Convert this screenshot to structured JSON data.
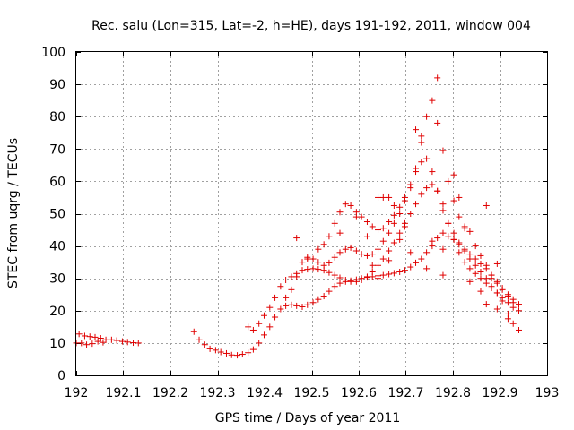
{
  "chart_data": {
    "type": "scatter",
    "title": "Rec. salu (Lon=315, Lat=-2, h=HE), days 191-192, 2011, window 004",
    "xlabel": "GPS time / Days of year 2011",
    "ylabel": "STEC from uqrg / TECUs",
    "xlim": [
      192,
      193
    ],
    "ylim": [
      0,
      100
    ],
    "xticks": [
      "192",
      "192.1",
      "192.2",
      "192.3",
      "192.4",
      "192.5",
      "192.6",
      "192.7",
      "192.8",
      "192.9",
      "193"
    ],
    "yticks": [
      "0",
      "10",
      "20",
      "30",
      "40",
      "50",
      "60",
      "70",
      "80",
      "90",
      "100"
    ],
    "grid": true,
    "marker": "plus",
    "marker_color": "#e00000",
    "series": [
      {
        "points": [
          [
            192.0,
            10.0
          ],
          [
            192.011,
            10.0
          ],
          [
            192.022,
            9.5
          ],
          [
            192.034,
            9.8
          ],
          [
            192.046,
            10.5
          ],
          [
            192.057,
            10.2
          ],
          [
            192.006,
            12.8
          ],
          [
            192.018,
            12.2
          ],
          [
            192.029,
            12.0
          ],
          [
            192.04,
            11.8
          ],
          [
            192.052,
            11.5
          ],
          [
            192.063,
            11.0
          ],
          [
            192.075,
            11.0
          ],
          [
            192.086,
            10.8
          ],
          [
            192.098,
            10.5
          ],
          [
            192.109,
            10.3
          ],
          [
            192.121,
            10.1
          ],
          [
            192.132,
            10.0
          ],
          [
            192.25,
            13.5
          ],
          [
            192.261,
            11.0
          ],
          [
            192.273,
            9.5
          ],
          [
            192.284,
            8.2
          ],
          [
            192.296,
            7.8
          ],
          [
            192.307,
            7.2
          ],
          [
            192.319,
            6.8
          ],
          [
            192.33,
            6.3
          ],
          [
            192.342,
            6.2
          ],
          [
            192.353,
            6.5
          ],
          [
            192.365,
            7.0
          ],
          [
            192.376,
            8.0
          ],
          [
            192.388,
            10.0
          ],
          [
            192.399,
            12.5
          ],
          [
            192.411,
            15.0
          ],
          [
            192.422,
            18.0
          ],
          [
            192.434,
            20.5
          ],
          [
            192.445,
            21.5
          ],
          [
            192.457,
            21.8
          ],
          [
            192.468,
            21.5
          ],
          [
            192.48,
            21.2
          ],
          [
            192.491,
            21.8
          ],
          [
            192.503,
            22.5
          ],
          [
            192.514,
            23.5
          ],
          [
            192.526,
            24.5
          ],
          [
            192.537,
            26.0
          ],
          [
            192.549,
            27.5
          ],
          [
            192.56,
            28.5
          ],
          [
            192.572,
            29.0
          ],
          [
            192.583,
            29.3
          ],
          [
            192.595,
            29.6
          ],
          [
            192.606,
            30.0
          ],
          [
            192.618,
            30.3
          ],
          [
            192.629,
            30.5
          ],
          [
            192.641,
            30.8
          ],
          [
            192.652,
            31.0
          ],
          [
            192.664,
            31.3
          ],
          [
            192.675,
            31.6
          ],
          [
            192.687,
            32.0
          ],
          [
            192.698,
            32.5
          ],
          [
            192.71,
            33.5
          ],
          [
            192.721,
            34.8
          ],
          [
            192.733,
            36.0
          ],
          [
            192.744,
            38.0
          ],
          [
            192.756,
            40.0
          ],
          [
            192.767,
            42.5
          ],
          [
            192.779,
            44.0
          ],
          [
            192.79,
            43.0
          ],
          [
            192.802,
            42.0
          ],
          [
            192.813,
            40.5
          ],
          [
            192.825,
            39.0
          ],
          [
            192.836,
            37.5
          ],
          [
            192.848,
            36.0
          ],
          [
            192.859,
            34.5
          ],
          [
            192.871,
            33.0
          ],
          [
            192.882,
            31.0
          ],
          [
            192.894,
            29.0
          ],
          [
            192.905,
            27.0
          ],
          [
            192.917,
            25.0
          ],
          [
            192.928,
            23.5
          ],
          [
            192.94,
            22.0
          ],
          [
            192.365,
            15.0
          ],
          [
            192.376,
            14.0
          ],
          [
            192.388,
            16.0
          ],
          [
            192.399,
            18.5
          ],
          [
            192.411,
            21.0
          ],
          [
            192.422,
            24.0
          ],
          [
            192.434,
            27.5
          ],
          [
            192.445,
            29.5
          ],
          [
            192.457,
            30.5
          ],
          [
            192.468,
            31.5
          ],
          [
            192.48,
            32.5
          ],
          [
            192.491,
            32.8
          ],
          [
            192.503,
            33.0
          ],
          [
            192.514,
            32.8
          ],
          [
            192.526,
            32.5
          ],
          [
            192.537,
            31.8
          ],
          [
            192.549,
            31.0
          ],
          [
            192.56,
            30.2
          ],
          [
            192.572,
            29.5
          ],
          [
            192.583,
            29.0
          ],
          [
            192.595,
            29.0
          ],
          [
            192.606,
            29.5
          ],
          [
            192.618,
            30.5
          ],
          [
            192.629,
            32.0
          ],
          [
            192.641,
            34.0
          ],
          [
            192.652,
            36.0
          ],
          [
            192.664,
            38.5
          ],
          [
            192.675,
            41.0
          ],
          [
            192.687,
            44.0
          ],
          [
            192.698,
            47.0
          ],
          [
            192.71,
            50.0
          ],
          [
            192.721,
            53.0
          ],
          [
            192.733,
            56.0
          ],
          [
            192.744,
            58.0
          ],
          [
            192.756,
            59.0
          ],
          [
            192.767,
            57.0
          ],
          [
            192.779,
            53.0
          ],
          [
            192.79,
            47.0
          ],
          [
            192.802,
            42.0
          ],
          [
            192.813,
            38.0
          ],
          [
            192.825,
            35.0
          ],
          [
            192.836,
            33.0
          ],
          [
            192.848,
            31.5
          ],
          [
            192.859,
            30.0
          ],
          [
            192.871,
            28.5
          ],
          [
            192.882,
            27.0
          ],
          [
            192.894,
            25.5
          ],
          [
            192.905,
            24.0
          ],
          [
            192.917,
            22.5
          ],
          [
            192.928,
            21.0
          ],
          [
            192.94,
            20.0
          ],
          [
            192.445,
            24.0
          ],
          [
            192.457,
            26.5
          ],
          [
            192.468,
            30.5
          ],
          [
            192.48,
            35.0
          ],
          [
            192.491,
            36.5
          ],
          [
            192.503,
            36.0
          ],
          [
            192.514,
            35.0
          ],
          [
            192.526,
            34.0
          ],
          [
            192.537,
            34.8
          ],
          [
            192.549,
            36.5
          ],
          [
            192.56,
            38.0
          ],
          [
            192.572,
            39.0
          ],
          [
            192.583,
            39.5
          ],
          [
            192.595,
            38.5
          ],
          [
            192.606,
            37.5
          ],
          [
            192.618,
            37.0
          ],
          [
            192.629,
            37.5
          ],
          [
            192.641,
            39.0
          ],
          [
            192.652,
            41.5
          ],
          [
            192.664,
            44.0
          ],
          [
            192.675,
            47.0
          ],
          [
            192.687,
            50.0
          ],
          [
            192.698,
            54.0
          ],
          [
            192.71,
            58.0
          ],
          [
            192.721,
            64.0
          ],
          [
            192.733,
            72.0
          ],
          [
            192.744,
            80.0
          ],
          [
            192.756,
            85.0
          ],
          [
            192.767,
            78.0
          ],
          [
            192.779,
            69.5
          ],
          [
            192.79,
            60.0
          ],
          [
            192.802,
            54.0
          ],
          [
            192.813,
            49.0
          ],
          [
            192.825,
            46.0
          ],
          [
            192.836,
            44.5
          ],
          [
            192.848,
            40.0
          ],
          [
            192.859,
            37.0
          ],
          [
            192.871,
            34.0
          ],
          [
            192.882,
            31.0
          ],
          [
            192.894,
            28.5
          ],
          [
            192.905,
            26.5
          ],
          [
            192.917,
            24.5
          ],
          [
            192.928,
            22.5
          ],
          [
            192.468,
            42.5
          ],
          [
            192.491,
            36.0
          ],
          [
            192.514,
            39.0
          ],
          [
            192.526,
            40.5
          ],
          [
            192.537,
            43.0
          ],
          [
            192.549,
            47.0
          ],
          [
            192.56,
            50.5
          ],
          [
            192.572,
            53.0
          ],
          [
            192.583,
            52.5
          ],
          [
            192.595,
            50.5
          ],
          [
            192.606,
            49.0
          ],
          [
            192.618,
            47.5
          ],
          [
            192.629,
            46.0
          ],
          [
            192.641,
            45.0
          ],
          [
            192.652,
            45.5
          ],
          [
            192.664,
            47.5
          ],
          [
            192.675,
            49.5
          ],
          [
            192.687,
            52.0
          ],
          [
            192.698,
            55.0
          ],
          [
            192.71,
            59.0
          ],
          [
            192.721,
            63.0
          ],
          [
            192.733,
            66.0
          ],
          [
            192.744,
            67.0
          ],
          [
            192.756,
            63.0
          ],
          [
            192.767,
            57.0
          ],
          [
            192.779,
            51.0
          ],
          [
            192.79,
            47.0
          ],
          [
            192.802,
            44.0
          ],
          [
            192.813,
            41.0
          ],
          [
            192.825,
            38.5
          ],
          [
            192.836,
            36.0
          ],
          [
            192.848,
            34.0
          ],
          [
            192.859,
            32.0
          ],
          [
            192.871,
            30.0
          ],
          [
            192.882,
            27.5
          ],
          [
            192.894,
            25.5
          ],
          [
            192.905,
            23.0
          ],
          [
            192.917,
            19.0
          ],
          [
            192.928,
            16.0
          ],
          [
            192.94,
            14.0
          ],
          [
            192.56,
            44.0
          ],
          [
            192.595,
            49.0
          ],
          [
            192.618,
            43.0
          ],
          [
            192.641,
            55.0
          ],
          [
            192.652,
            55.0
          ],
          [
            192.664,
            55.0
          ],
          [
            192.675,
            52.5
          ],
          [
            192.698,
            46.0
          ],
          [
            192.721,
            76.0
          ],
          [
            192.733,
            74.0
          ],
          [
            192.767,
            92.0
          ],
          [
            192.802,
            62.0
          ],
          [
            192.825,
            45.5
          ],
          [
            192.871,
            52.5
          ],
          [
            192.882,
            30.0
          ],
          [
            192.894,
            34.5
          ],
          [
            192.71,
            38.0
          ],
          [
            192.744,
            33.0
          ],
          [
            192.779,
            39.0
          ],
          [
            192.756,
            41.5
          ],
          [
            192.779,
            31.0
          ],
          [
            192.813,
            55.0
          ],
          [
            192.836,
            29.0
          ],
          [
            192.859,
            26.0
          ],
          [
            192.871,
            22.0
          ],
          [
            192.894,
            20.5
          ],
          [
            192.917,
            17.5
          ],
          [
            192.664,
            35.5
          ],
          [
            192.687,
            42.0
          ],
          [
            192.629,
            34.0
          ],
          [
            192.641,
            30.0
          ]
        ]
      }
    ]
  }
}
